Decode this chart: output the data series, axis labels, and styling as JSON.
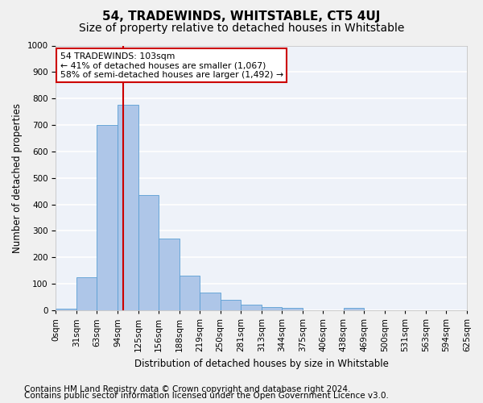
{
  "title": "54, TRADEWINDS, WHITSTABLE, CT5 4UJ",
  "subtitle": "Size of property relative to detached houses in Whitstable",
  "xlabel": "Distribution of detached houses by size in Whitstable",
  "ylabel": "Number of detached properties",
  "bar_values": [
    5,
    125,
    700,
    775,
    435,
    270,
    130,
    68,
    40,
    22,
    12,
    8,
    0,
    0,
    8,
    0,
    0,
    0,
    0,
    0
  ],
  "bar_labels": [
    "0sqm",
    "31sqm",
    "63sqm",
    "94sqm",
    "125sqm",
    "156sqm",
    "188sqm",
    "219sqm",
    "250sqm",
    "281sqm",
    "313sqm",
    "344sqm",
    "375sqm",
    "406sqm",
    "438sqm",
    "469sqm",
    "500sqm",
    "531sqm",
    "563sqm",
    "594sqm",
    "625sqm"
  ],
  "bar_color": "#aec6e8",
  "bar_edge_color": "#5a9fd4",
  "vline_color": "#cc0000",
  "annotation_text": "54 TRADEWINDS: 103sqm\n← 41% of detached houses are smaller (1,067)\n58% of semi-detached houses are larger (1,492) →",
  "annotation_box_color": "#ffffff",
  "annotation_box_edge": "#cc0000",
  "ylim": [
    0,
    1000
  ],
  "yticks": [
    0,
    100,
    200,
    300,
    400,
    500,
    600,
    700,
    800,
    900,
    1000
  ],
  "footer1": "Contains HM Land Registry data © Crown copyright and database right 2024.",
  "footer2": "Contains public sector information licensed under the Open Government Licence v3.0.",
  "bg_color": "#eef2f9",
  "grid_color": "#ffffff",
  "title_fontsize": 11,
  "subtitle_fontsize": 10,
  "axis_fontsize": 8.5,
  "tick_fontsize": 7.5,
  "footer_fontsize": 7.5
}
